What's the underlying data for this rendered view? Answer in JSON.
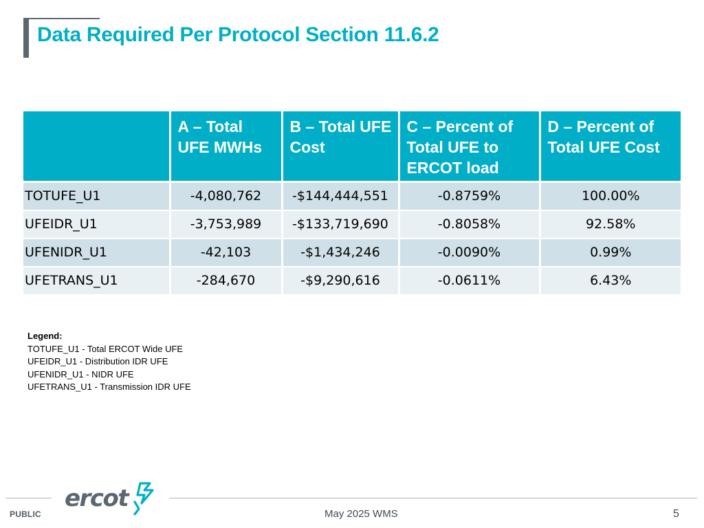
{
  "slide": {
    "title": "Data Required Per Protocol Section 11.6.2"
  },
  "table": {
    "headers": [
      "",
      "A – Total UFE MWHs",
      "B – Total UFE Cost",
      "C – Percent of Total UFE to ERCOT load",
      "D – Percent of Total UFE Cost"
    ],
    "rows": [
      [
        "TOTUFE_U1",
        "-4,080,762",
        "-$144,444,551",
        "-0.8759%",
        "100.00%"
      ],
      [
        "UFEIDR_U1",
        "-3,753,989",
        "-$133,719,690",
        "-0.8058%",
        "92.58%"
      ],
      [
        "UFENIDR_U1",
        "-42,103",
        "-$1,434,246",
        "-0.0090%",
        "0.99%"
      ],
      [
        "UFETRANS_U1",
        "-284,670",
        "-$9,290,616",
        "-0.0611%",
        "6.43%"
      ]
    ]
  },
  "legend": {
    "title": "Legend:",
    "items": [
      "TOTUFE_U1 - Total ERCOT Wide UFE",
      "UFEIDR_U1 - Distribution IDR UFE",
      "UFENIDR_U1 - NIDR UFE",
      "UFETRANS_U1 - Transmission IDR UFE"
    ]
  },
  "footer": {
    "classification": "PUBLIC",
    "logo_text": "ercot",
    "center_text": "May 2025 WMS",
    "page_number": "5"
  },
  "colors": {
    "accent": "#00aec7",
    "row_dark": "#cfe0e8",
    "row_light": "#e8f0f4",
    "logo_gray": "#5b6670"
  }
}
